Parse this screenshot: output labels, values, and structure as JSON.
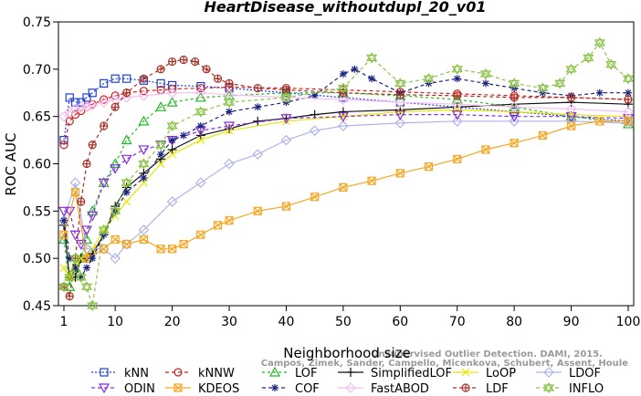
{
  "chart_data": {
    "type": "line",
    "title": "HeartDisease_withoutdupl_20_v01",
    "xlabel": "Neighborhood size",
    "ylabel": "ROC AUC",
    "xlim": [
      1,
      100
    ],
    "ylim": [
      0.45,
      0.75
    ],
    "xticks": [
      1,
      10,
      20,
      30,
      40,
      50,
      60,
      70,
      80,
      90,
      100
    ],
    "yticks": [
      0.45,
      0.5,
      0.55,
      0.6,
      0.65,
      0.7,
      0.75
    ],
    "grid": false,
    "legend_position": "bottom",
    "watermark": [
      "Campos, Zimek, Sander, Campello, Micenkova, Schubert, Assent, Houle",
      "Unsupervised Outlier Detection. DAMI, 2015."
    ],
    "series": [
      {
        "name": "kNN",
        "color": "#1f3fd6",
        "marker": "square",
        "dash": "2,2",
        "points": [
          [
            1,
            0.625
          ],
          [
            2,
            0.67
          ],
          [
            3,
            0.665
          ],
          [
            4,
            0.665
          ],
          [
            5,
            0.67
          ],
          [
            6,
            0.675
          ],
          [
            8,
            0.685
          ],
          [
            10,
            0.69
          ],
          [
            12,
            0.69
          ],
          [
            15,
            0.688
          ],
          [
            18,
            0.685
          ],
          [
            20,
            0.683
          ],
          [
            25,
            0.682
          ],
          [
            30,
            0.68
          ],
          [
            40,
            0.675
          ],
          [
            50,
            0.67
          ],
          [
            60,
            0.665
          ],
          [
            70,
            0.66
          ],
          [
            80,
            0.655
          ],
          [
            90,
            0.65
          ],
          [
            100,
            0.645
          ]
        ]
      },
      {
        "name": "kNNW",
        "color": "#cc2222",
        "marker": "circle",
        "dash": "4,3",
        "points": [
          [
            1,
            0.62
          ],
          [
            2,
            0.645
          ],
          [
            3,
            0.652
          ],
          [
            4,
            0.656
          ],
          [
            5,
            0.66
          ],
          [
            6,
            0.663
          ],
          [
            8,
            0.668
          ],
          [
            10,
            0.672
          ],
          [
            12,
            0.675
          ],
          [
            15,
            0.677
          ],
          [
            18,
            0.678
          ],
          [
            20,
            0.679
          ],
          [
            25,
            0.68
          ],
          [
            30,
            0.681
          ],
          [
            40,
            0.68
          ],
          [
            50,
            0.678
          ],
          [
            60,
            0.676
          ],
          [
            70,
            0.674
          ],
          [
            80,
            0.672
          ],
          [
            90,
            0.67
          ],
          [
            100,
            0.668
          ]
        ]
      },
      {
        "name": "LOF",
        "color": "#22bb22",
        "marker": "triangle-up",
        "dash": "3,3",
        "points": [
          [
            1,
            0.52
          ],
          [
            2,
            0.47
          ],
          [
            3,
            0.49
          ],
          [
            4,
            0.5
          ],
          [
            5,
            0.52
          ],
          [
            6,
            0.55
          ],
          [
            8,
            0.58
          ],
          [
            10,
            0.6
          ],
          [
            12,
            0.625
          ],
          [
            15,
            0.645
          ],
          [
            18,
            0.66
          ],
          [
            20,
            0.665
          ],
          [
            25,
            0.67
          ],
          [
            30,
            0.672
          ],
          [
            40,
            0.675
          ],
          [
            50,
            0.675
          ],
          [
            60,
            0.672
          ],
          [
            70,
            0.668
          ],
          [
            80,
            0.66
          ],
          [
            90,
            0.65
          ],
          [
            100,
            0.642
          ]
        ]
      },
      {
        "name": "SimplifiedLOF",
        "color": "#111111",
        "marker": "plus",
        "dash": "",
        "points": [
          [
            1,
            0.535
          ],
          [
            2,
            0.48
          ],
          [
            3,
            0.48
          ],
          [
            4,
            0.5
          ],
          [
            5,
            0.5
          ],
          [
            6,
            0.505
          ],
          [
            8,
            0.525
          ],
          [
            10,
            0.555
          ],
          [
            12,
            0.575
          ],
          [
            15,
            0.59
          ],
          [
            18,
            0.605
          ],
          [
            20,
            0.615
          ],
          [
            25,
            0.63
          ],
          [
            30,
            0.637
          ],
          [
            35,
            0.645
          ],
          [
            40,
            0.648
          ],
          [
            45,
            0.652
          ],
          [
            50,
            0.655
          ],
          [
            60,
            0.657
          ],
          [
            70,
            0.66
          ],
          [
            80,
            0.663
          ],
          [
            90,
            0.665
          ],
          [
            100,
            0.663
          ]
        ]
      },
      {
        "name": "LoOP",
        "color": "#e6e600",
        "marker": "x",
        "dash": "",
        "points": [
          [
            1,
            0.49
          ],
          [
            2,
            0.48
          ],
          [
            3,
            0.49
          ],
          [
            4,
            0.5
          ],
          [
            5,
            0.505
          ],
          [
            6,
            0.51
          ],
          [
            8,
            0.53
          ],
          [
            10,
            0.545
          ],
          [
            12,
            0.56
          ],
          [
            15,
            0.58
          ],
          [
            18,
            0.6
          ],
          [
            20,
            0.61
          ],
          [
            25,
            0.625
          ],
          [
            30,
            0.635
          ],
          [
            40,
            0.645
          ],
          [
            50,
            0.65
          ],
          [
            60,
            0.655
          ],
          [
            70,
            0.657
          ],
          [
            80,
            0.655
          ],
          [
            90,
            0.652
          ],
          [
            100,
            0.65
          ]
        ]
      },
      {
        "name": "LDOF",
        "color": "#b0b4e8",
        "marker": "diamond",
        "dash": "",
        "points": [
          [
            1,
            0.54
          ],
          [
            3,
            0.58
          ],
          [
            5,
            0.51
          ],
          [
            8,
            0.51
          ],
          [
            10,
            0.5
          ],
          [
            12,
            0.515
          ],
          [
            15,
            0.53
          ],
          [
            20,
            0.56
          ],
          [
            25,
            0.58
          ],
          [
            30,
            0.6
          ],
          [
            35,
            0.61
          ],
          [
            40,
            0.625
          ],
          [
            45,
            0.635
          ],
          [
            50,
            0.64
          ],
          [
            60,
            0.643
          ],
          [
            70,
            0.645
          ],
          [
            80,
            0.645
          ],
          [
            90,
            0.645
          ],
          [
            100,
            0.643
          ]
        ]
      },
      {
        "name": "ODIN",
        "color": "#8a2be2",
        "marker": "triangle-down",
        "dash": "4,3",
        "points": [
          [
            1,
            0.55
          ],
          [
            2,
            0.55
          ],
          [
            3,
            0.525
          ],
          [
            4,
            0.515
          ],
          [
            5,
            0.53
          ],
          [
            6,
            0.545
          ],
          [
            8,
            0.58
          ],
          [
            10,
            0.595
          ],
          [
            12,
            0.605
          ],
          [
            15,
            0.615
          ],
          [
            18,
            0.62
          ],
          [
            20,
            0.625
          ],
          [
            25,
            0.635
          ],
          [
            30,
            0.64
          ],
          [
            40,
            0.648
          ],
          [
            50,
            0.65
          ],
          [
            60,
            0.652
          ],
          [
            70,
            0.652
          ],
          [
            80,
            0.65
          ],
          [
            90,
            0.65
          ],
          [
            100,
            0.648
          ]
        ]
      },
      {
        "name": "KDEOS",
        "color": "#f5a623",
        "marker": "square-x",
        "dash": "",
        "points": [
          [
            1,
            0.525
          ],
          [
            3,
            0.57
          ],
          [
            5,
            0.5
          ],
          [
            8,
            0.51
          ],
          [
            10,
            0.52
          ],
          [
            12,
            0.515
          ],
          [
            15,
            0.52
          ],
          [
            18,
            0.51
          ],
          [
            20,
            0.51
          ],
          [
            22,
            0.515
          ],
          [
            25,
            0.525
          ],
          [
            28,
            0.535
          ],
          [
            30,
            0.54
          ],
          [
            35,
            0.55
          ],
          [
            40,
            0.555
          ],
          [
            45,
            0.565
          ],
          [
            50,
            0.575
          ],
          [
            55,
            0.582
          ],
          [
            60,
            0.59
          ],
          [
            65,
            0.597
          ],
          [
            70,
            0.605
          ],
          [
            75,
            0.615
          ],
          [
            80,
            0.622
          ],
          [
            85,
            0.63
          ],
          [
            90,
            0.64
          ],
          [
            95,
            0.645
          ],
          [
            100,
            0.645
          ]
        ]
      },
      {
        "name": "COF",
        "color": "#1a237e",
        "marker": "asterisk",
        "dash": "4,3",
        "points": [
          [
            1,
            0.54
          ],
          [
            2,
            0.5
          ],
          [
            3,
            0.49
          ],
          [
            4,
            0.48
          ],
          [
            5,
            0.49
          ],
          [
            6,
            0.5
          ],
          [
            8,
            0.525
          ],
          [
            10,
            0.55
          ],
          [
            12,
            0.57
          ],
          [
            15,
            0.585
          ],
          [
            18,
            0.61
          ],
          [
            20,
            0.625
          ],
          [
            22,
            0.63
          ],
          [
            25,
            0.64
          ],
          [
            30,
            0.655
          ],
          [
            35,
            0.66
          ],
          [
            40,
            0.665
          ],
          [
            45,
            0.672
          ],
          [
            50,
            0.695
          ],
          [
            52,
            0.7
          ],
          [
            55,
            0.69
          ],
          [
            60,
            0.675
          ],
          [
            65,
            0.685
          ],
          [
            70,
            0.69
          ],
          [
            75,
            0.685
          ],
          [
            80,
            0.68
          ],
          [
            85,
            0.675
          ],
          [
            90,
            0.672
          ],
          [
            95,
            0.675
          ],
          [
            100,
            0.675
          ]
        ]
      },
      {
        "name": "FastABOD",
        "color": "#f7bdf0",
        "marker": "diamond",
        "dash": "",
        "points": [
          [
            1,
            0.65
          ],
          [
            2,
            0.655
          ],
          [
            3,
            0.658
          ],
          [
            4,
            0.66
          ],
          [
            5,
            0.66
          ],
          [
            6,
            0.662
          ],
          [
            8,
            0.665
          ],
          [
            10,
            0.668
          ],
          [
            12,
            0.67
          ],
          [
            15,
            0.672
          ],
          [
            20,
            0.675
          ],
          [
            25,
            0.675
          ],
          [
            30,
            0.673
          ],
          [
            40,
            0.67
          ],
          [
            50,
            0.668
          ],
          [
            60,
            0.665
          ],
          [
            70,
            0.663
          ],
          [
            80,
            0.66
          ],
          [
            90,
            0.658
          ],
          [
            100,
            0.655
          ]
        ]
      },
      {
        "name": "LDF",
        "color": "#a93226",
        "marker": "circle-plus",
        "dash": "4,3",
        "points": [
          [
            1,
            0.47
          ],
          [
            2,
            0.46
          ],
          [
            3,
            0.5
          ],
          [
            4,
            0.56
          ],
          [
            5,
            0.6
          ],
          [
            6,
            0.62
          ],
          [
            8,
            0.64
          ],
          [
            10,
            0.66
          ],
          [
            12,
            0.675
          ],
          [
            15,
            0.69
          ],
          [
            18,
            0.7
          ],
          [
            20,
            0.708
          ],
          [
            22,
            0.71
          ],
          [
            24,
            0.708
          ],
          [
            26,
            0.7
          ],
          [
            28,
            0.69
          ],
          [
            30,
            0.685
          ],
          [
            35,
            0.68
          ],
          [
            40,
            0.678
          ],
          [
            50,
            0.675
          ],
          [
            60,
            0.673
          ],
          [
            70,
            0.672
          ],
          [
            80,
            0.67
          ],
          [
            90,
            0.67
          ],
          [
            100,
            0.668
          ]
        ]
      },
      {
        "name": "INFLO",
        "color": "#8bc34a",
        "marker": "star",
        "dash": "4,3",
        "points": [
          [
            1,
            0.47
          ],
          [
            2,
            0.48
          ],
          [
            3,
            0.5
          ],
          [
            4,
            0.48
          ],
          [
            5,
            0.47
          ],
          [
            6,
            0.45
          ],
          [
            8,
            0.53
          ],
          [
            10,
            0.55
          ],
          [
            12,
            0.58
          ],
          [
            15,
            0.6
          ],
          [
            18,
            0.62
          ],
          [
            20,
            0.64
          ],
          [
            25,
            0.655
          ],
          [
            30,
            0.665
          ],
          [
            40,
            0.67
          ],
          [
            50,
            0.68
          ],
          [
            55,
            0.712
          ],
          [
            60,
            0.685
          ],
          [
            65,
            0.69
          ],
          [
            70,
            0.7
          ],
          [
            75,
            0.695
          ],
          [
            80,
            0.685
          ],
          [
            85,
            0.68
          ],
          [
            88,
            0.685
          ],
          [
            90,
            0.7
          ],
          [
            93,
            0.712
          ],
          [
            95,
            0.728
          ],
          [
            97,
            0.705
          ],
          [
            100,
            0.69
          ]
        ]
      }
    ]
  }
}
